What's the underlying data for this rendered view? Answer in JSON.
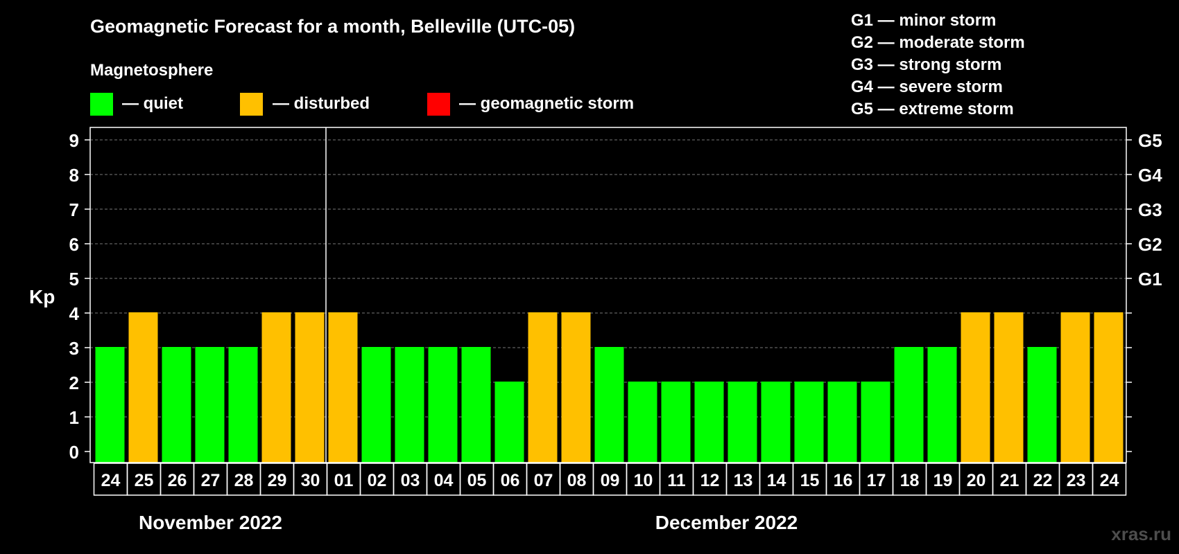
{
  "chart_data": {
    "type": "bar",
    "title": "Geomagnetic Forecast for a month, Belleville (UTC-05)",
    "legend_title": "Magnetosphere",
    "legend": [
      {
        "label": "— quiet",
        "color": "#00ff00"
      },
      {
        "label": "— disturbed",
        "color": "#ffc000"
      },
      {
        "label": "— geomagnetic storm",
        "color": "#ff0000"
      }
    ],
    "storm_scale": [
      "G1 — minor storm",
      "G2 — moderate storm",
      "G3 — strong storm",
      "G4 — severe storm",
      "G5 — extreme storm"
    ],
    "ylabel": "Kp",
    "ylim": [
      0,
      9
    ],
    "y_ticks": [
      "0",
      "1",
      "2",
      "3",
      "4",
      "5",
      "6",
      "7",
      "8",
      "9"
    ],
    "right_ticks": [
      {
        "kp": 5,
        "label": "G1"
      },
      {
        "kp": 6,
        "label": "G2"
      },
      {
        "kp": 7,
        "label": "G3"
      },
      {
        "kp": 8,
        "label": "G4"
      },
      {
        "kp": 9,
        "label": "G5"
      }
    ],
    "categories": [
      "24",
      "25",
      "26",
      "27",
      "28",
      "29",
      "30",
      "01",
      "02",
      "03",
      "04",
      "05",
      "06",
      "07",
      "08",
      "09",
      "10",
      "11",
      "12",
      "13",
      "14",
      "15",
      "16",
      "17",
      "18",
      "19",
      "20",
      "21",
      "22",
      "23",
      "24"
    ],
    "values": [
      3,
      4,
      3,
      3,
      3,
      4,
      4,
      4,
      3,
      3,
      3,
      3,
      2,
      4,
      4,
      3,
      2,
      2,
      2,
      2,
      2,
      2,
      2,
      2,
      3,
      3,
      4,
      4,
      3,
      4,
      4
    ],
    "colors": {
      "quiet": "#00ff00",
      "disturbed": "#ffc000",
      "storm": "#ff0000"
    },
    "month_labels": [
      {
        "label": "November 2022",
        "first_index": 0,
        "last_index": 6
      },
      {
        "label": "December 2022",
        "first_index": 7,
        "last_index": 30
      }
    ],
    "grid": true
  },
  "watermark": "xras.ru"
}
